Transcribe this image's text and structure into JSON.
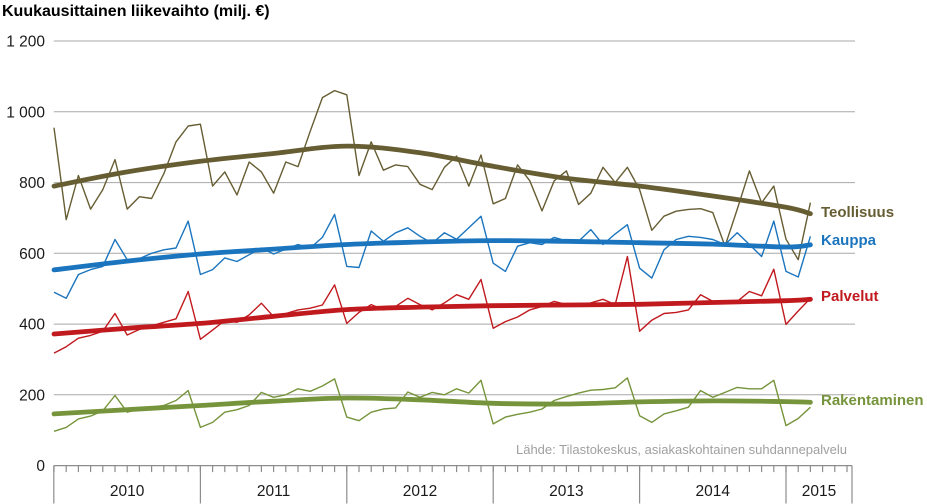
{
  "title": "Kuukausittainen liikevaihto (milj. €)",
  "source": "Lähde: Tilastokeskus, asiakaskohtainen suhdannepalvelu",
  "y_axis": {
    "ticks": [
      "1 200",
      "1 000",
      "800",
      "600",
      "400",
      "200",
      "0"
    ],
    "values": [
      1200,
      1000,
      800,
      600,
      400,
      200,
      0
    ]
  },
  "x_axis": {
    "years": [
      "2010",
      "2011",
      "2012",
      "2013",
      "2014",
      "2015"
    ],
    "months_per_year": [
      12,
      12,
      12,
      12,
      12,
      6
    ]
  },
  "legend": [
    {
      "label": "Teollisuus",
      "color": "#665d33"
    },
    {
      "label": "Kauppa",
      "color": "#1b75be"
    },
    {
      "label": "Palvelut",
      "color": "#c0191e"
    },
    {
      "label": "Rakentaminen",
      "color": "#76943b"
    }
  ],
  "chart_data": {
    "type": "line",
    "title": "Kuukausittainen liikevaihto (milj. €)",
    "x_unit": "month",
    "start": "2010-01",
    "end": "2015-03",
    "ylim": [
      0,
      1200
    ],
    "grid": true,
    "legend_position": "right",
    "note": "Each series has a thin monthly line and a thick smoothed trend line",
    "trend_knot_months": [
      0,
      6,
      12,
      18,
      24,
      30,
      36,
      42,
      48,
      54,
      60,
      62
    ],
    "series": [
      {
        "name": "Teollisuus",
        "color": "#665d33",
        "monthly": [
          955,
          695,
          820,
          725,
          780,
          865,
          725,
          760,
          755,
          825,
          915,
          960,
          965,
          790,
          830,
          765,
          858,
          830,
          770,
          858,
          845,
          945,
          1040,
          1060,
          1048,
          820,
          915,
          835,
          850,
          845,
          795,
          780,
          843,
          875,
          790,
          878,
          740,
          755,
          850,
          805,
          720,
          805,
          833,
          738,
          770,
          843,
          800,
          843,
          780,
          665,
          705,
          719,
          724,
          726,
          715,
          620,
          724,
          833,
          743,
          790,
          640,
          582,
          743
        ],
        "trend_knots": [
          790,
          830,
          860,
          882,
          903,
          884,
          846,
          812,
          790,
          762,
          730,
          712
        ]
      },
      {
        "name": "Kauppa",
        "color": "#1b75be",
        "monthly": [
          490,
          473,
          540,
          554,
          563,
          639,
          582,
          585,
          600,
          610,
          615,
          691,
          540,
          554,
          587,
          577,
          596,
          615,
          598,
          612,
          625,
          615,
          645,
          710,
          563,
          560,
          663,
          634,
          658,
          672,
          648,
          629,
          658,
          640,
          672,
          705,
          572,
          549,
          620,
          630,
          625,
          645,
          635,
          634,
          667,
          625,
          655,
          681,
          558,
          530,
          610,
          639,
          648,
          645,
          639,
          625,
          658,
          625,
          591,
          691,
          549,
          533,
          648
        ],
        "trend_knots": [
          553,
          578,
          598,
          612,
          625,
          632,
          636,
          634,
          630,
          626,
          618,
          624
        ]
      },
      {
        "name": "Palvelut",
        "color": "#c0191e",
        "monthly": [
          318,
          336,
          360,
          368,
          380,
          430,
          369,
          385,
          395,
          405,
          415,
          492,
          357,
          383,
          410,
          405,
          426,
          459,
          421,
          430,
          440,
          445,
          454,
          511,
          402,
          433,
          455,
          440,
          450,
          473,
          455,
          440,
          460,
          483,
          470,
          526,
          388,
          407,
          420,
          440,
          450,
          464,
          455,
          450,
          460,
          470,
          455,
          591,
          380,
          411,
          430,
          433,
          440,
          483,
          464,
          460,
          464,
          492,
          480,
          555,
          399,
          437,
          473
        ],
        "trend_knots": [
          372,
          388,
          402,
          422,
          441,
          448,
          452,
          454,
          456,
          461,
          466,
          470
        ]
      },
      {
        "name": "Rakentaminen",
        "color": "#76943b",
        "monthly": [
          97,
          108,
          132,
          140,
          155,
          198,
          151,
          160,
          165,
          170,
          184,
          212,
          108,
          122,
          151,
          158,
          170,
          207,
          193,
          200,
          217,
          210,
          225,
          245,
          137,
          127,
          151,
          160,
          163,
          208,
          193,
          207,
          200,
          217,
          205,
          241,
          118,
          137,
          145,
          151,
          160,
          184,
          195,
          205,
          213,
          215,
          220,
          248,
          141,
          122,
          146,
          155,
          165,
          212,
          193,
          207,
          221,
          217,
          217,
          241,
          113,
          133,
          165
        ],
        "trend_knots": [
          146,
          158,
          170,
          182,
          191,
          186,
          176,
          174,
          180,
          183,
          181,
          179
        ]
      }
    ]
  }
}
